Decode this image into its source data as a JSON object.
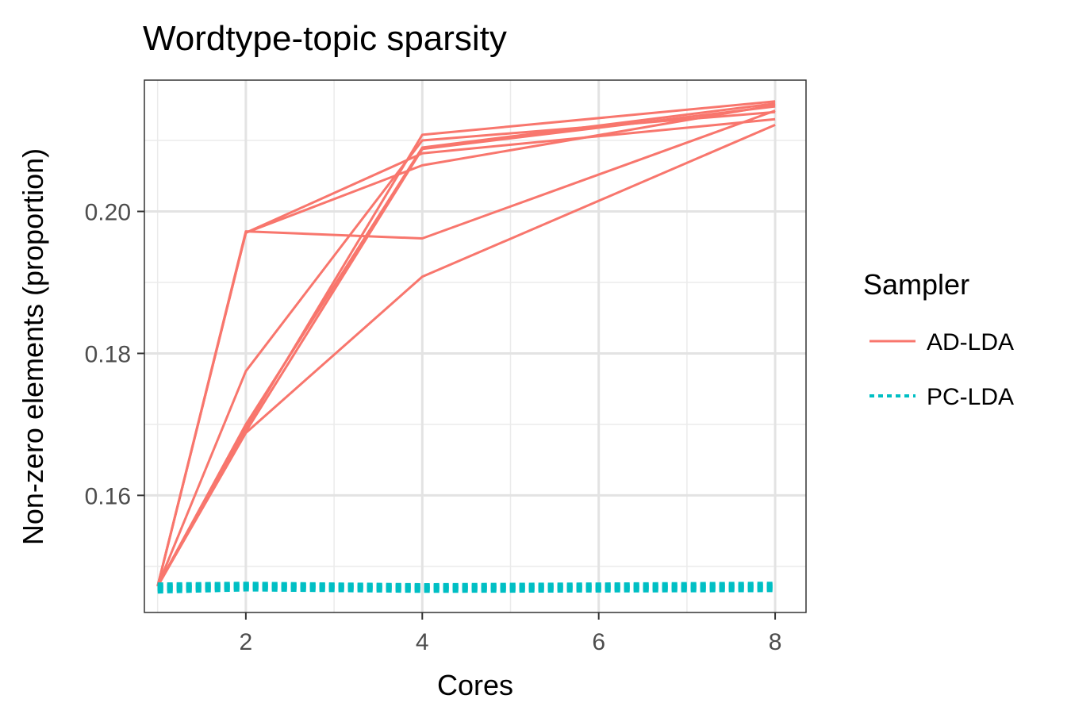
{
  "chart_data": {
    "type": "line",
    "title": "Wordtype-topic sparsity",
    "xlabel": "Cores",
    "ylabel": "Non-zero elements (proportion)",
    "xlim": [
      0.85,
      8.35
    ],
    "ylim": [
      0.1435,
      0.2185
    ],
    "x_ticks": [
      2,
      4,
      6,
      8
    ],
    "x_tick_labels": [
      "2",
      "4",
      "6",
      "8"
    ],
    "y_ticks": [
      0.16,
      0.18,
      0.2
    ],
    "y_tick_labels": [
      "0.16",
      "0.18",
      "0.20"
    ],
    "x_minor_grid": [
      1,
      3,
      5,
      7
    ],
    "y_minor_grid": [
      0.15,
      0.17,
      0.19,
      0.21
    ],
    "grid": true,
    "legend": {
      "title": "Sampler",
      "placement": "right",
      "entries": [
        {
          "label": "AD-LDA",
          "color": "#F8766D",
          "linestyle": "solid"
        },
        {
          "label": "PC-LDA",
          "color": "#00BFC4",
          "linestyle": "dotted"
        }
      ]
    },
    "x": [
      1,
      2,
      4,
      8
    ],
    "series": [
      {
        "group": "AD-LDA",
        "color": "#F8766D",
        "values": [
          0.1472,
          0.1972,
          0.1962,
          0.2142
        ]
      },
      {
        "group": "AD-LDA",
        "color": "#F8766D",
        "values": [
          0.1472,
          0.197,
          0.2065,
          0.215
        ]
      },
      {
        "group": "AD-LDA",
        "color": "#F8766D",
        "values": [
          0.1472,
          0.197,
          0.2082,
          0.213
        ]
      },
      {
        "group": "AD-LDA",
        "color": "#F8766D",
        "values": [
          0.1472,
          0.1775,
          0.21,
          0.214
        ]
      },
      {
        "group": "AD-LDA",
        "color": "#F8766D",
        "values": [
          0.1472,
          0.17,
          0.209,
          0.2152
        ]
      },
      {
        "group": "AD-LDA",
        "color": "#F8766D",
        "values": [
          0.1472,
          0.1695,
          0.2108,
          0.2155
        ]
      },
      {
        "group": "AD-LDA",
        "color": "#F8766D",
        "values": [
          0.1472,
          0.169,
          0.2088,
          0.2148
        ]
      },
      {
        "group": "AD-LDA",
        "color": "#F8766D",
        "values": [
          0.1472,
          0.1688,
          0.1908,
          0.2122
        ]
      },
      {
        "group": "PC-LDA",
        "color": "#00BFC4",
        "values": [
          0.1465,
          0.1468,
          0.1466,
          0.1467
        ]
      },
      {
        "group": "PC-LDA",
        "color": "#00BFC4",
        "values": [
          0.1468,
          0.147,
          0.1468,
          0.1469
        ]
      },
      {
        "group": "PC-LDA",
        "color": "#00BFC4",
        "values": [
          0.147,
          0.1472,
          0.147,
          0.1471
        ]
      },
      {
        "group": "PC-LDA",
        "color": "#00BFC4",
        "values": [
          0.1472,
          0.1474,
          0.1472,
          0.1473
        ]
      },
      {
        "group": "PC-LDA",
        "color": "#00BFC4",
        "values": [
          0.1474,
          0.1475,
          0.1473,
          0.1475
        ]
      }
    ]
  }
}
